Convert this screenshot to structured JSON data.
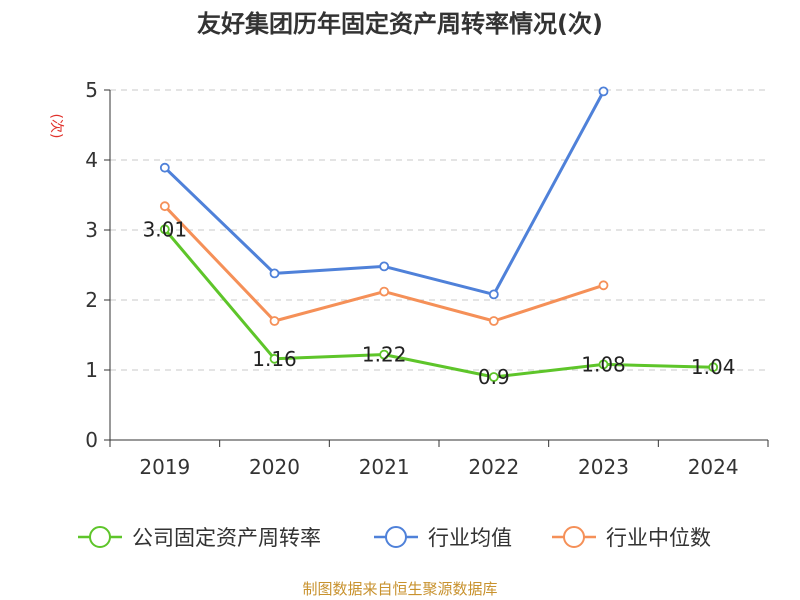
{
  "chart_data": {
    "type": "line",
    "title": "友好集团历年固定资产周转率情况(次)",
    "ylabel": "(次)",
    "xlabel": "",
    "ylim": [
      0,
      5
    ],
    "yticks": [
      0,
      1,
      2,
      3,
      4,
      5
    ],
    "grid": true,
    "legend_position": "bottom",
    "categories": [
      "2019",
      "2020",
      "2021",
      "2022",
      "2023",
      "2024"
    ],
    "series": [
      {
        "name": "公司固定资产周转率",
        "color": "#5ec52a",
        "values": [
          3.01,
          1.16,
          1.22,
          0.9,
          1.08,
          1.04
        ],
        "labels": [
          "3.01",
          "1.16",
          "1.22",
          "0.9",
          "1.08",
          "1.04"
        ]
      },
      {
        "name": "行业均值",
        "color": "#4f81d9",
        "values": [
          3.89,
          2.38,
          2.48,
          2.08,
          4.98,
          null
        ]
      },
      {
        "name": "行业中位数",
        "color": "#f59058",
        "values": [
          3.34,
          1.7,
          2.12,
          1.7,
          2.21,
          null
        ]
      }
    ],
    "source": "制图数据来自恒生聚源数据库"
  }
}
